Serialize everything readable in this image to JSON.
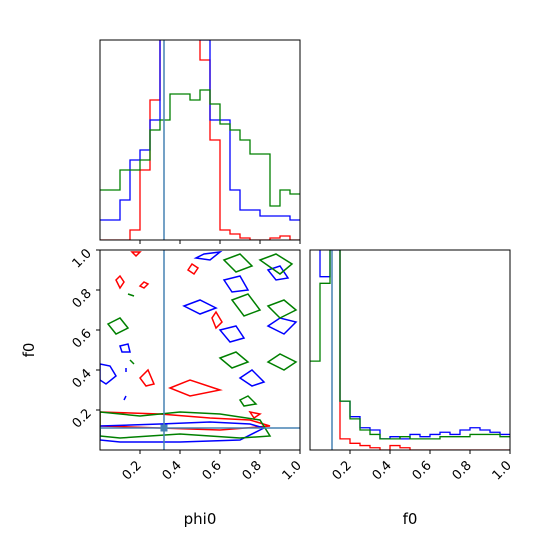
{
  "chart_data": {
    "type": "corner",
    "parameters": [
      "phi0",
      "f0"
    ],
    "truth": {
      "phi0": 0.32,
      "f0": 0.11
    },
    "colors": {
      "red": "#ff0000",
      "blue": "#0000ff",
      "green": "#008000",
      "truth": "#4682b4"
    },
    "panels": [
      {
        "kind": "histogram",
        "param": "phi0",
        "x_range": [
          0,
          1
        ],
        "series": [
          {
            "color": "red",
            "values": [
              0.0,
              0.0,
              0.0,
              0.05,
              0.35,
              0.7,
              1.2,
              1.3,
              1.2,
              1.1,
              0.9,
              0.5,
              0.05,
              0.03,
              0.01,
              0.0,
              0.0,
              0.01,
              0.02,
              0.0
            ]
          },
          {
            "color": "blue",
            "values": [
              0.1,
              0.1,
              0.2,
              0.4,
              0.45,
              0.6,
              1.3,
              1.3,
              1.25,
              1.15,
              1.0,
              0.6,
              0.6,
              0.25,
              0.15,
              0.15,
              0.12,
              0.12,
              0.12,
              0.1
            ]
          },
          {
            "color": "green",
            "values": [
              0.25,
              0.25,
              0.35,
              0.35,
              0.4,
              0.55,
              0.6,
              0.73,
              0.73,
              0.7,
              0.75,
              0.68,
              0.58,
              0.55,
              0.5,
              0.43,
              0.43,
              0.17,
              0.25,
              0.23
            ]
          }
        ]
      },
      {
        "kind": "contour",
        "x_param": "phi0",
        "y_param": "f0",
        "x_range": [
          0,
          1
        ],
        "y_range": [
          0,
          1
        ],
        "x_ticks": [
          "0.2",
          "0.4",
          "0.6",
          "0.8",
          "1.0"
        ],
        "y_ticks": [
          "0.2",
          "0.4",
          "0.6",
          "0.8",
          "1.0"
        ],
        "xlabel": "phi0",
        "ylabel": "f0",
        "series": [
          {
            "color": "red",
            "contours": [
              [
                [
                  0.0,
                  0.19
                ],
                [
                  0.3,
                  0.18
                ],
                [
                  0.55,
                  0.16
                ],
                [
                  0.75,
                  0.15
                ],
                [
                  0.85,
                  0.12
                ],
                [
                  0.6,
                  0.1
                ],
                [
                  0.3,
                  0.11
                ],
                [
                  0.0,
                  0.12
                ]
              ],
              [
                [
                  0.35,
                  0.31
                ],
                [
                  0.45,
                  0.35
                ],
                [
                  0.6,
                  0.3
                ],
                [
                  0.45,
                  0.27
                ],
                [
                  0.35,
                  0.31
                ]
              ],
              [
                [
                  0.08,
                  0.85
                ],
                [
                  0.1,
                  0.81
                ],
                [
                  0.12,
                  0.84
                ],
                [
                  0.1,
                  0.87
                ],
                [
                  0.08,
                  0.85
                ]
              ],
              [
                [
                  0.2,
                  0.82
                ],
                [
                  0.22,
                  0.84
                ],
                [
                  0.24,
                  0.83
                ],
                [
                  0.22,
                  0.81
                ],
                [
                  0.2,
                  0.82
                ]
              ],
              [
                [
                  0.56,
                  0.66
                ],
                [
                  0.58,
                  0.61
                ],
                [
                  0.61,
                  0.64
                ],
                [
                  0.58,
                  0.69
                ],
                [
                  0.56,
                  0.66
                ]
              ],
              [
                [
                  0.2,
                  0.36
                ],
                [
                  0.24,
                  0.4
                ],
                [
                  0.27,
                  0.33
                ],
                [
                  0.23,
                  0.32
                ],
                [
                  0.2,
                  0.36
                ]
              ],
              [
                [
                  0.44,
                  0.9
                ],
                [
                  0.47,
                  0.88
                ],
                [
                  0.49,
                  0.91
                ],
                [
                  0.46,
                  0.93
                ],
                [
                  0.44,
                  0.9
                ]
              ],
              [
                [
                  0.75,
                  0.19
                ],
                [
                  0.8,
                  0.18
                ],
                [
                  0.77,
                  0.16
                ],
                [
                  0.75,
                  0.19
                ]
              ],
              [
                [
                  0.16,
                  0.99
                ],
                [
                  0.18,
                  0.97
                ],
                [
                  0.2,
                  0.99
                ]
              ]
            ]
          },
          {
            "color": "blue",
            "contours": [
              [
                [
                  0.0,
                  0.12
                ],
                [
                  0.3,
                  0.13
                ],
                [
                  0.55,
                  0.14
                ],
                [
                  0.75,
                  0.13
                ],
                [
                  0.82,
                  0.11
                ],
                [
                  0.7,
                  0.05
                ],
                [
                  0.4,
                  0.04
                ],
                [
                  0.1,
                  0.04
                ],
                [
                  0.0,
                  0.05
                ]
              ],
              [
                [
                  0.48,
                  0.96
                ],
                [
                  0.55,
                  0.95
                ],
                [
                  0.6,
                  0.99
                ],
                [
                  0.52,
                  0.98
                ],
                [
                  0.48,
                  0.96
                ]
              ],
              [
                [
                  0.42,
                  0.72
                ],
                [
                  0.5,
                  0.75
                ],
                [
                  0.58,
                  0.71
                ],
                [
                  0.5,
                  0.68
                ],
                [
                  0.42,
                  0.72
                ]
              ],
              [
                [
                  0.62,
                  0.85
                ],
                [
                  0.7,
                  0.87
                ],
                [
                  0.74,
                  0.8
                ],
                [
                  0.66,
                  0.79
                ],
                [
                  0.62,
                  0.85
                ]
              ],
              [
                [
                  0.6,
                  0.6
                ],
                [
                  0.68,
                  0.62
                ],
                [
                  0.72,
                  0.56
                ],
                [
                  0.65,
                  0.54
                ],
                [
                  0.6,
                  0.6
                ]
              ],
              [
                [
                  0.84,
                  0.62
                ],
                [
                  0.9,
                  0.66
                ],
                [
                  0.98,
                  0.64
                ],
                [
                  0.92,
                  0.58
                ],
                [
                  0.84,
                  0.62
                ]
              ],
              [
                [
                  0.7,
                  0.36
                ],
                [
                  0.76,
                  0.4
                ],
                [
                  0.82,
                  0.34
                ],
                [
                  0.76,
                  0.32
                ],
                [
                  0.7,
                  0.36
                ]
              ],
              [
                [
                  0.0,
                  0.43
                ],
                [
                  0.05,
                  0.42
                ],
                [
                  0.08,
                  0.37
                ],
                [
                  0.03,
                  0.33
                ],
                [
                  0.0,
                  0.35
                ]
              ],
              [
                [
                  0.1,
                  0.52
                ],
                [
                  0.14,
                  0.53
                ],
                [
                  0.15,
                  0.49
                ],
                [
                  0.11,
                  0.49
                ],
                [
                  0.1,
                  0.52
                ]
              ],
              [
                [
                  0.84,
                  0.9
                ],
                [
                  0.9,
                  0.92
                ],
                [
                  0.94,
                  0.86
                ],
                [
                  0.88,
                  0.85
                ],
                [
                  0.84,
                  0.9
                ]
              ],
              [
                [
                  0.12,
                  0.25
                ],
                [
                  0.13,
                  0.27
                ]
              ],
              [
                [
                  0.13,
                  0.39
                ],
                [
                  0.13,
                  0.41
                ]
              ]
            ]
          },
          {
            "color": "green",
            "contours": [
              [
                [
                  0.0,
                  0.19
                ],
                [
                  0.2,
                  0.17
                ],
                [
                  0.4,
                  0.19
                ],
                [
                  0.6,
                  0.18
                ],
                [
                  0.8,
                  0.15
                ],
                [
                  0.85,
                  0.07
                ],
                [
                  0.7,
                  0.06
                ],
                [
                  0.4,
                  0.08
                ],
                [
                  0.1,
                  0.06
                ],
                [
                  0.0,
                  0.07
                ]
              ],
              [
                [
                  0.62,
                  0.95
                ],
                [
                  0.7,
                  0.98
                ],
                [
                  0.76,
                  0.92
                ],
                [
                  0.68,
                  0.89
                ],
                [
                  0.62,
                  0.95
                ]
              ],
              [
                [
                  0.8,
                  0.95
                ],
                [
                  0.88,
                  0.98
                ],
                [
                  0.96,
                  0.93
                ],
                [
                  0.9,
                  0.88
                ],
                [
                  0.8,
                  0.95
                ]
              ],
              [
                [
                  0.66,
                  0.75
                ],
                [
                  0.74,
                  0.78
                ],
                [
                  0.8,
                  0.7
                ],
                [
                  0.72,
                  0.67
                ],
                [
                  0.66,
                  0.75
                ]
              ],
              [
                [
                  0.84,
                  0.72
                ],
                [
                  0.92,
                  0.75
                ],
                [
                  0.98,
                  0.7
                ],
                [
                  0.9,
                  0.66
                ],
                [
                  0.84,
                  0.72
                ]
              ],
              [
                [
                  0.6,
                  0.46
                ],
                [
                  0.68,
                  0.49
                ],
                [
                  0.74,
                  0.44
                ],
                [
                  0.66,
                  0.41
                ],
                [
                  0.6,
                  0.46
                ]
              ],
              [
                [
                  0.84,
                  0.44
                ],
                [
                  0.9,
                  0.48
                ],
                [
                  0.98,
                  0.44
                ],
                [
                  0.92,
                  0.4
                ],
                [
                  0.84,
                  0.44
                ]
              ],
              [
                [
                  0.04,
                  0.63
                ],
                [
                  0.1,
                  0.66
                ],
                [
                  0.14,
                  0.61
                ],
                [
                  0.08,
                  0.58
                ],
                [
                  0.04,
                  0.63
                ]
              ],
              [
                [
                  0.14,
                  0.78
                ],
                [
                  0.17,
                  0.77
                ]
              ],
              [
                [
                  0.15,
                  0.45
                ],
                [
                  0.17,
                  0.43
                ]
              ],
              [
                [
                  0.7,
                  0.25
                ],
                [
                  0.74,
                  0.27
                ],
                [
                  0.78,
                  0.23
                ],
                [
                  0.72,
                  0.22
                ],
                [
                  0.7,
                  0.25
                ]
              ]
            ]
          }
        ]
      },
      {
        "kind": "histogram",
        "param": "f0",
        "x_range": [
          0,
          1
        ],
        "x_ticks": [
          "0.2",
          "0.4",
          "0.6",
          "0.8",
          "1.0"
        ],
        "xlabel": "f0",
        "series": [
          {
            "color": "red",
            "values": [
              1.1,
              1.1,
              1.2,
              0.05,
              0.03,
              0.02,
              0.01,
              0.0,
              0.02,
              0.01,
              0.0,
              0.0,
              0.0,
              0.0,
              0.0,
              0.0,
              0.0,
              0.0,
              0.0,
              0.0
            ]
          },
          {
            "color": "blue",
            "values": [
              1.0,
              0.78,
              0.9,
              0.22,
              0.15,
              0.1,
              0.09,
              0.05,
              0.06,
              0.05,
              0.07,
              0.06,
              0.07,
              0.08,
              0.07,
              0.09,
              0.1,
              0.09,
              0.08,
              0.07
            ]
          },
          {
            "color": "green",
            "values": [
              0.4,
              0.75,
              0.95,
              0.22,
              0.14,
              0.09,
              0.07,
              0.05,
              0.05,
              0.06,
              0.05,
              0.05,
              0.05,
              0.06,
              0.06,
              0.06,
              0.07,
              0.07,
              0.07,
              0.06
            ]
          }
        ]
      }
    ]
  }
}
